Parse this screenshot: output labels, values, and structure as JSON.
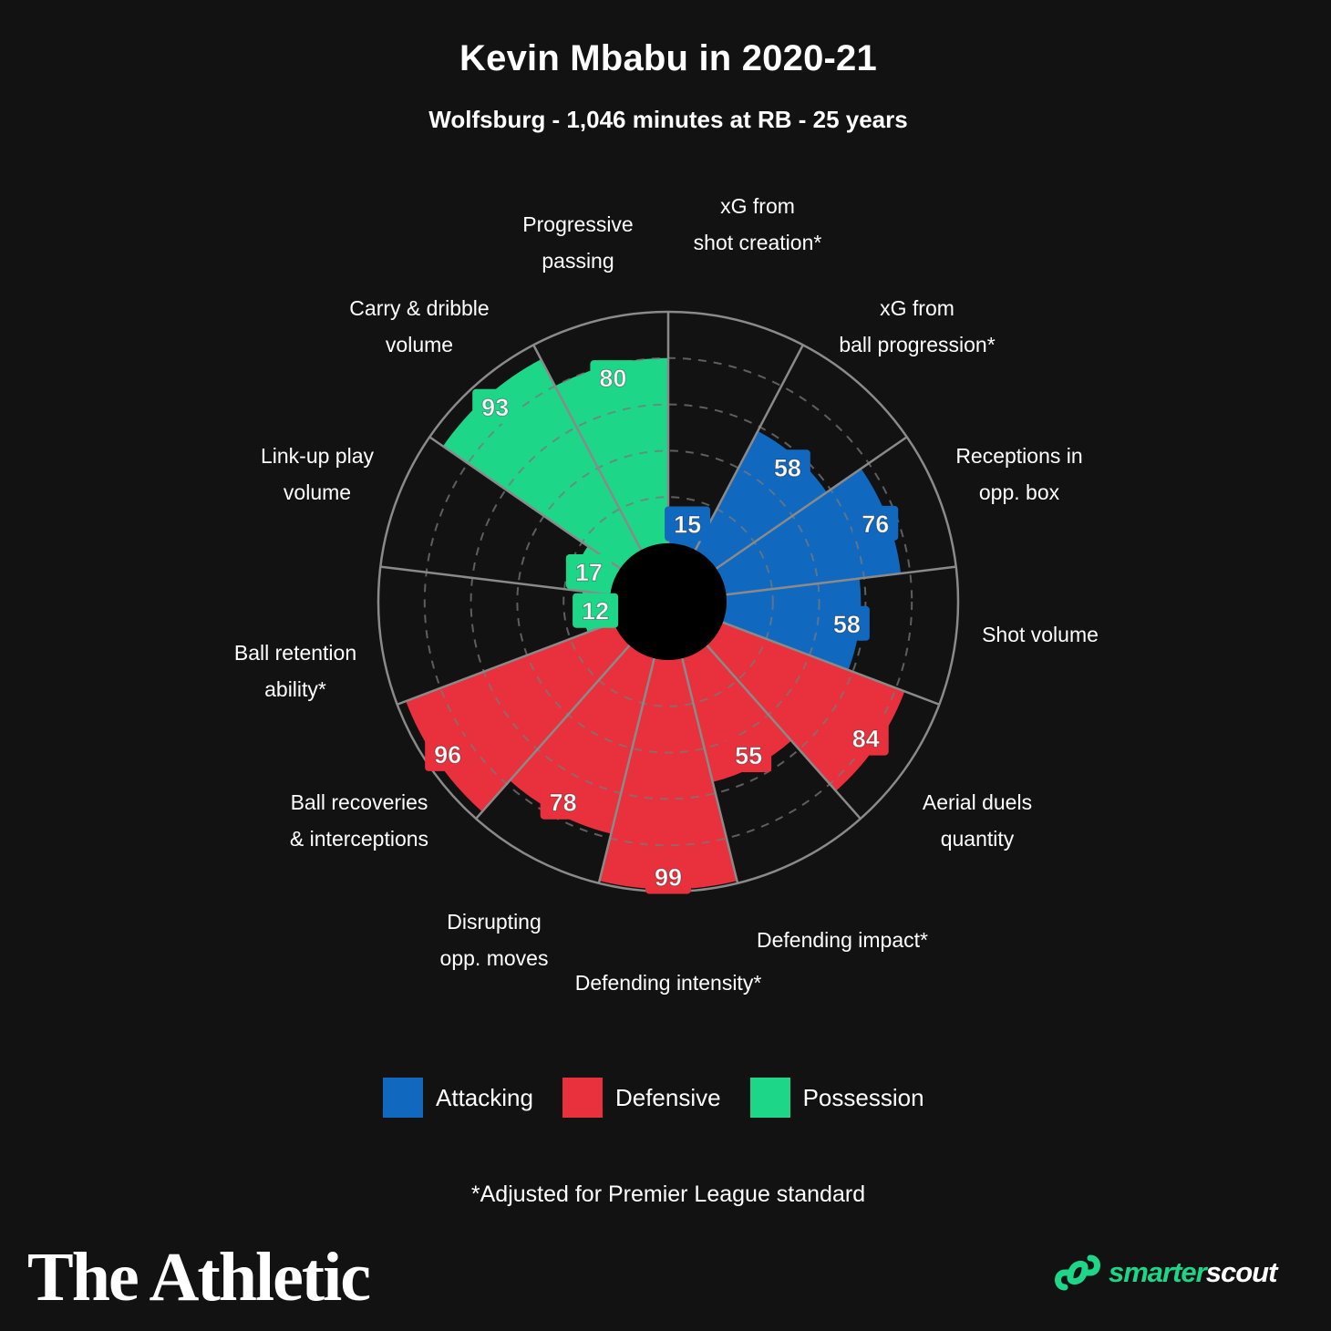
{
  "header": {
    "title": "Kevin Mbabu in 2020-21",
    "subtitle": "Wolfsburg - 1,046 minutes at RB - 25 years"
  },
  "colors": {
    "Attacking": "#1068bf",
    "Defensive": "#e8313c",
    "Possession": "#1ed688",
    "background": "#121212",
    "brand_green": "#1ed688"
  },
  "chart_data": {
    "type": "polar-bar",
    "ylim": [
      0,
      100
    ],
    "categories": [
      "xG from shot creation*",
      "xG from ball progression*",
      "Receptions in opp. box",
      "Shot volume",
      "Aerial duels quantity",
      "Defending impact*",
      "Defending intensity*",
      "Disrupting opp. moves",
      "Ball recoveries & interceptions",
      "Ball retention ability*",
      "Link-up play volume",
      "Carry & dribble volume",
      "Progressive passing"
    ],
    "label_lines": [
      [
        "xG from",
        "shot creation*"
      ],
      [
        "xG from",
        "ball progression*"
      ],
      [
        "Receptions in",
        "opp. box"
      ],
      [
        "Shot volume"
      ],
      [
        "Aerial duels",
        "quantity"
      ],
      [
        "Defending impact*"
      ],
      [
        "Defending intensity*"
      ],
      [
        "Disrupting",
        "opp. moves"
      ],
      [
        "Ball recoveries",
        "& interceptions"
      ],
      [
        "Ball retention",
        "ability*"
      ],
      [
        "Link-up play",
        "volume"
      ],
      [
        "Carry & dribble",
        "volume"
      ],
      [
        "Progressive",
        "passing"
      ]
    ],
    "values": [
      15,
      58,
      76,
      58,
      84,
      55,
      99,
      78,
      96,
      12,
      17,
      93,
      80
    ],
    "groups": [
      "Attacking",
      "Attacking",
      "Attacking",
      "Attacking",
      "Defensive",
      "Defensive",
      "Defensive",
      "Defensive",
      "Defensive",
      "Possession",
      "Possession",
      "Possession",
      "Possession"
    ],
    "legend": [
      "Attacking",
      "Defensive",
      "Possession"
    ],
    "legend_position": "bottom",
    "grid": true
  },
  "footnote": "*Adjusted for Premier League standard",
  "branding": {
    "publisher": "The Athletic",
    "partner": "smarterscout"
  }
}
